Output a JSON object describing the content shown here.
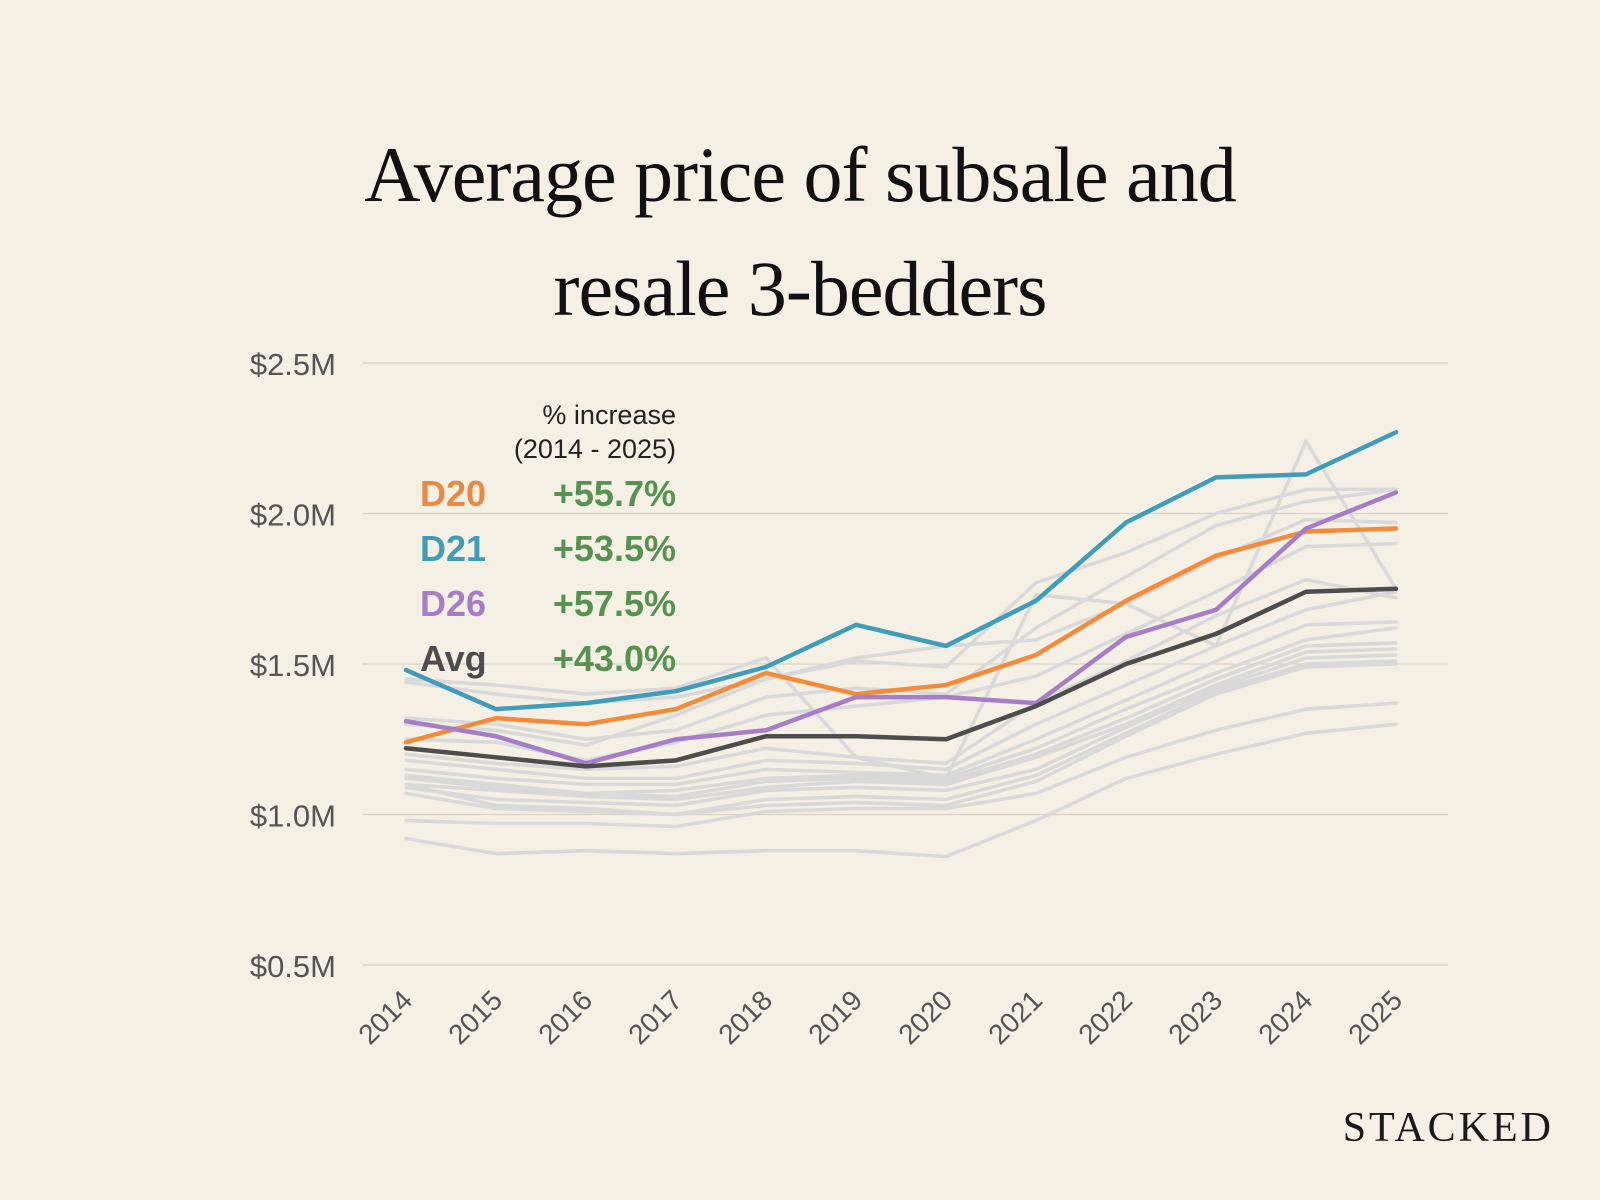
{
  "title_lines": [
    "Average price of subsale and",
    "resale 3-bedders"
  ],
  "brand": "STACKED",
  "legend": {
    "heading_line1": "% increase",
    "heading_line2": "(2014 - 2025)",
    "rows": [
      {
        "label": "D20",
        "pct": "+55.7%",
        "color": "#e88a45"
      },
      {
        "label": "D21",
        "pct": "+53.5%",
        "color": "#3f9cbb"
      },
      {
        "label": "D26",
        "pct": "+57.5%",
        "color": "#a67ec8"
      },
      {
        "label": "Avg",
        "pct": "+43.0%",
        "color": "#4d4d4d"
      }
    ]
  },
  "chart_data": {
    "type": "line",
    "title": "Average price of subsale and resale 3-bedders",
    "x": [
      "2014",
      "2015",
      "2016",
      "2017",
      "2018",
      "2019",
      "2020",
      "2021",
      "2022",
      "2023",
      "2024",
      "2025"
    ],
    "ylim": [
      0.5,
      2.5
    ],
    "yticks": [
      0.5,
      1.0,
      1.5,
      2.0,
      2.5
    ],
    "ytick_labels": [
      "$0.5M",
      "$1.0M",
      "$1.5M",
      "$2.0M",
      "$2.5M"
    ],
    "ylabel": "",
    "xlabel": "",
    "grid": true,
    "background_series_color": "#d9d9d9",
    "background_series": [
      [
        1.44,
        1.4,
        1.37,
        1.39,
        1.45,
        1.51,
        1.49,
        1.77,
        1.87,
        2.0,
        2.08,
        2.08
      ],
      [
        1.45,
        1.43,
        1.4,
        1.42,
        1.52,
        1.19,
        1.12,
        1.73,
        1.7,
        1.56,
        2.24,
        1.75
      ],
      [
        1.32,
        1.3,
        1.25,
        1.28,
        1.39,
        1.42,
        1.4,
        1.62,
        1.79,
        1.96,
        2.04,
        2.08
      ],
      [
        1.3,
        1.28,
        1.23,
        1.33,
        1.45,
        1.52,
        1.56,
        1.58,
        1.7,
        1.85,
        1.98,
        1.97
      ],
      [
        1.25,
        1.24,
        1.18,
        1.24,
        1.33,
        1.36,
        1.39,
        1.46,
        1.6,
        1.74,
        1.89,
        1.9
      ],
      [
        1.2,
        1.17,
        1.15,
        1.16,
        1.22,
        1.19,
        1.17,
        1.37,
        1.51,
        1.66,
        1.78,
        1.72
      ],
      [
        1.18,
        1.15,
        1.12,
        1.12,
        1.18,
        1.17,
        1.15,
        1.3,
        1.43,
        1.56,
        1.68,
        1.74
      ],
      [
        1.15,
        1.12,
        1.1,
        1.1,
        1.15,
        1.14,
        1.13,
        1.25,
        1.38,
        1.51,
        1.63,
        1.64
      ],
      [
        1.13,
        1.1,
        1.07,
        1.08,
        1.12,
        1.13,
        1.12,
        1.22,
        1.35,
        1.47,
        1.58,
        1.62
      ],
      [
        1.12,
        1.09,
        1.07,
        1.06,
        1.11,
        1.12,
        1.11,
        1.2,
        1.32,
        1.45,
        1.56,
        1.57
      ],
      [
        1.1,
        1.08,
        1.06,
        1.05,
        1.09,
        1.11,
        1.1,
        1.19,
        1.3,
        1.43,
        1.54,
        1.55
      ],
      [
        1.09,
        1.05,
        1.04,
        1.03,
        1.08,
        1.09,
        1.08,
        1.15,
        1.29,
        1.42,
        1.52,
        1.53
      ],
      [
        1.07,
        1.02,
        1.01,
        1.0,
        1.05,
        1.06,
        1.05,
        1.13,
        1.27,
        1.41,
        1.5,
        1.51
      ],
      [
        1.1,
        1.03,
        1.02,
        1.0,
        1.03,
        1.04,
        1.03,
        1.11,
        1.26,
        1.4,
        1.49,
        1.5
      ],
      [
        0.98,
        0.97,
        0.97,
        0.96,
        1.01,
        1.02,
        1.02,
        1.07,
        1.19,
        1.28,
        1.35,
        1.37
      ],
      [
        0.92,
        0.87,
        0.88,
        0.87,
        0.88,
        0.88,
        0.86,
        0.98,
        1.12,
        1.2,
        1.27,
        1.3
      ]
    ],
    "series": [
      {
        "name": "D21",
        "color": "#3f9cbb",
        "values": [
          1.48,
          1.35,
          1.37,
          1.41,
          1.49,
          1.63,
          1.56,
          1.71,
          1.97,
          2.12,
          2.13,
          2.27
        ]
      },
      {
        "name": "D20",
        "color": "#f28b3c",
        "values": [
          1.24,
          1.32,
          1.3,
          1.35,
          1.47,
          1.4,
          1.43,
          1.53,
          1.71,
          1.86,
          1.94,
          1.95
        ]
      },
      {
        "name": "D26",
        "color": "#a67ec8",
        "values": [
          1.31,
          1.26,
          1.17,
          1.25,
          1.28,
          1.39,
          1.39,
          1.37,
          1.59,
          1.68,
          1.95,
          2.07
        ]
      },
      {
        "name": "Avg",
        "color": "#4d4d4d",
        "values": [
          1.22,
          1.19,
          1.16,
          1.18,
          1.26,
          1.26,
          1.25,
          1.36,
          1.5,
          1.6,
          1.74,
          1.75
        ]
      }
    ]
  }
}
